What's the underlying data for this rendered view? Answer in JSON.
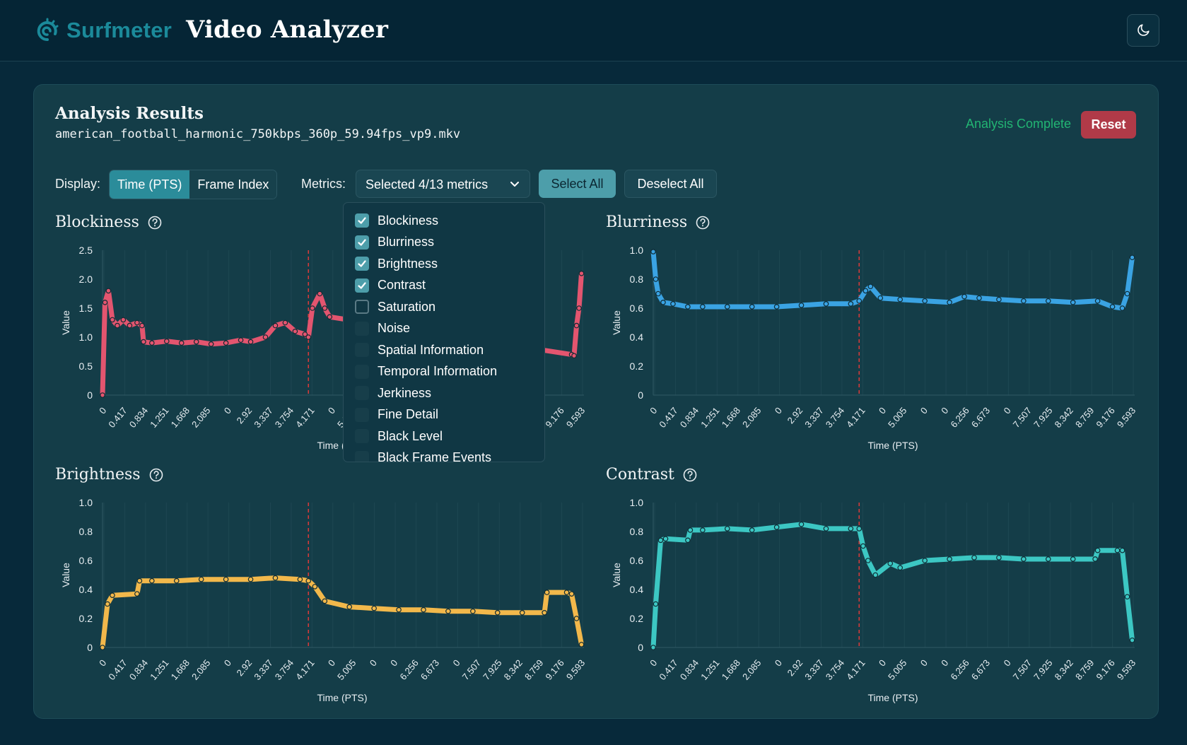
{
  "header": {
    "brand": "Surfmeter",
    "title": "Video Analyzer"
  },
  "results": {
    "title": "Analysis Results",
    "filename": "american_football_harmonic_750kbps_360p_59.94fps_vp9.mkv",
    "status": "Analysis Complete",
    "reset_label": "Reset"
  },
  "controls": {
    "display_label": "Display:",
    "display_options": [
      "Time (PTS)",
      "Frame Index"
    ],
    "display_selected": "Time (PTS)",
    "metrics_label": "Metrics:",
    "metrics_value": "Selected 4/13 metrics",
    "select_all": "Select All",
    "deselect_all": "Deselect All"
  },
  "metrics_dropdown": [
    {
      "label": "Blockiness",
      "checked": true
    },
    {
      "label": "Blurriness",
      "checked": true
    },
    {
      "label": "Brightness",
      "checked": true
    },
    {
      "label": "Contrast",
      "checked": true
    },
    {
      "label": "Saturation",
      "checked": false
    },
    {
      "label": "Noise",
      "checked": false
    },
    {
      "label": "Spatial Information",
      "checked": false
    },
    {
      "label": "Temporal Information",
      "checked": false
    },
    {
      "label": "Jerkiness",
      "checked": false
    },
    {
      "label": "Fine Detail",
      "checked": false
    },
    {
      "label": "Black Level",
      "checked": false
    },
    {
      "label": "Black Frame Events",
      "checked": false
    }
  ],
  "x_ticks": [
    "0",
    "0.417",
    "0.834",
    "1.251",
    "1.668",
    "2.085",
    "0",
    "2.92",
    "3.337",
    "3.754",
    "4.171",
    "0",
    "5.005",
    "0",
    "0",
    "6.256",
    "6.673",
    "0",
    "7.507",
    "7.925",
    "8.342",
    "8.759",
    "9.176",
    "9.593"
  ],
  "chart_data": [
    {
      "type": "line",
      "title": "Blockiness",
      "color": "#e3556f",
      "xlabel": "Time (PTS)",
      "ylabel": "Value",
      "ylim": [
        0,
        2.5
      ],
      "yticks": [
        "0",
        "0.5",
        "1.0",
        "1.5",
        "2.0",
        "2.5"
      ],
      "x": [
        0,
        0.05,
        0.12,
        0.2,
        0.3,
        0.42,
        0.55,
        0.7,
        0.8,
        0.83,
        1.0,
        1.3,
        1.6,
        1.9,
        2.2,
        2.5,
        2.8,
        3.0,
        3.3,
        3.5,
        3.7,
        3.9,
        4.1,
        4.17,
        4.25,
        4.4,
        4.5,
        4.6,
        9.5,
        9.55,
        9.6,
        9.65,
        9.7
      ],
      "values": [
        0,
        1.6,
        1.8,
        1.3,
        1.2,
        1.3,
        1.2,
        1.25,
        1.2,
        0.92,
        0.9,
        0.93,
        0.9,
        0.92,
        0.88,
        0.9,
        0.95,
        0.92,
        1.0,
        1.2,
        1.25,
        1.1,
        1.05,
        1.0,
        1.5,
        1.75,
        1.5,
        1.35,
        0.7,
        0.68,
        1.2,
        1.5,
        2.1
      ],
      "marker_x": 4.17,
      "hidden_x": [
        4.65,
        9.45
      ]
    },
    {
      "type": "line",
      "title": "Blurriness",
      "color": "#3aa3e3",
      "xlabel": "Time (PTS)",
      "ylabel": "Value",
      "ylim": [
        0,
        1.0
      ],
      "yticks": [
        "0",
        "0.2",
        "0.4",
        "0.6",
        "0.8",
        "1.0"
      ],
      "x": [
        0,
        0.05,
        0.1,
        0.2,
        0.4,
        0.7,
        1.0,
        1.5,
        2.0,
        2.5,
        3.0,
        3.5,
        4.0,
        4.17,
        4.3,
        4.4,
        4.6,
        5.0,
        5.5,
        6.0,
        6.3,
        6.6,
        7.0,
        7.5,
        8.0,
        8.5,
        9.0,
        9.3,
        9.5,
        9.6,
        9.7
      ],
      "values": [
        0.99,
        0.8,
        0.7,
        0.64,
        0.63,
        0.61,
        0.61,
        0.61,
        0.61,
        0.61,
        0.62,
        0.63,
        0.63,
        0.65,
        0.72,
        0.75,
        0.67,
        0.66,
        0.65,
        0.64,
        0.68,
        0.67,
        0.66,
        0.65,
        0.65,
        0.64,
        0.65,
        0.61,
        0.6,
        0.7,
        0.95
      ],
      "marker_x": 4.17
    },
    {
      "type": "line",
      "title": "Brightness",
      "color": "#f2b84b",
      "xlabel": "Time (PTS)",
      "ylabel": "Value",
      "ylim": [
        0,
        1.0
      ],
      "yticks": [
        "0",
        "0.2",
        "0.4",
        "0.6",
        "0.8",
        "1.0"
      ],
      "x": [
        0,
        0.1,
        0.2,
        0.7,
        0.75,
        1.0,
        1.5,
        2.0,
        2.5,
        3.0,
        3.5,
        4.0,
        4.17,
        4.3,
        4.5,
        5.0,
        5.5,
        6.0,
        6.5,
        7.0,
        7.5,
        8.0,
        8.5,
        8.95,
        9.0,
        9.4,
        9.5,
        9.6,
        9.7
      ],
      "values": [
        0,
        0.3,
        0.36,
        0.37,
        0.46,
        0.46,
        0.46,
        0.47,
        0.47,
        0.47,
        0.48,
        0.47,
        0.46,
        0.42,
        0.32,
        0.28,
        0.27,
        0.26,
        0.26,
        0.25,
        0.25,
        0.24,
        0.24,
        0.24,
        0.38,
        0.38,
        0.37,
        0.2,
        0.02
      ],
      "marker_x": 4.17
    },
    {
      "type": "line",
      "title": "Contrast",
      "color": "#3cc7c3",
      "xlabel": "Time (PTS)",
      "ylabel": "Value",
      "ylim": [
        0,
        1.0
      ],
      "yticks": [
        "0",
        "0.2",
        "0.4",
        "0.6",
        "0.8",
        "1.0"
      ],
      "x": [
        0,
        0.05,
        0.15,
        0.25,
        0.7,
        0.75,
        1.0,
        1.5,
        2.0,
        2.5,
        3.0,
        3.5,
        4.0,
        4.17,
        4.25,
        4.35,
        4.5,
        4.8,
        5.0,
        5.5,
        6.0,
        6.5,
        7.0,
        7.5,
        8.0,
        8.5,
        8.95,
        9.0,
        9.4,
        9.5,
        9.6,
        9.7
      ],
      "values": [
        0,
        0.3,
        0.74,
        0.75,
        0.74,
        0.81,
        0.81,
        0.82,
        0.81,
        0.83,
        0.85,
        0.82,
        0.82,
        0.82,
        0.7,
        0.6,
        0.5,
        0.58,
        0.55,
        0.6,
        0.61,
        0.62,
        0.62,
        0.61,
        0.61,
        0.61,
        0.61,
        0.67,
        0.67,
        0.67,
        0.35,
        0.05
      ],
      "marker_x": 4.17
    }
  ]
}
